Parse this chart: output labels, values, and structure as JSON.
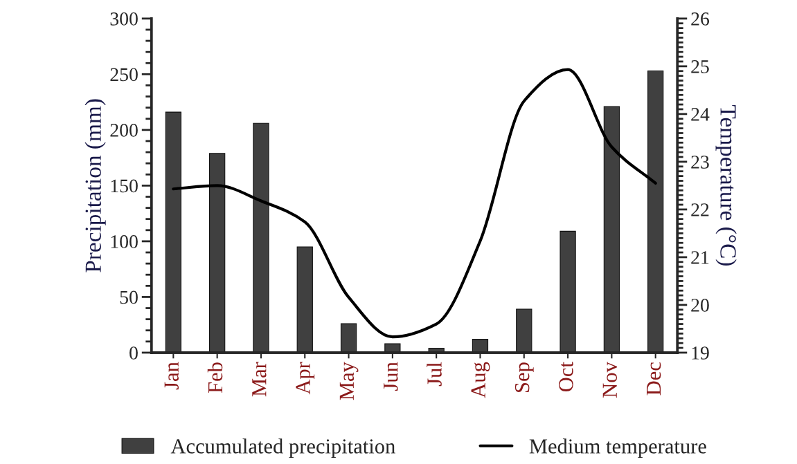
{
  "chart_data": {
    "type": "bar",
    "categories": [
      "Jan",
      "Feb",
      "Mar",
      "Apr",
      "May",
      "Jun",
      "Jul",
      "Aug",
      "Sep",
      "Oct",
      "Nov",
      "Dec"
    ],
    "ylabel": "Precipitation (mm)",
    "y2label": "Temperature (°C)",
    "ylim": [
      0,
      300
    ],
    "yticks": [
      0,
      50,
      100,
      150,
      200,
      250,
      300
    ],
    "y2lim": [
      19,
      26
    ],
    "y2ticks": [
      19,
      20,
      21,
      22,
      23,
      24,
      25,
      26
    ],
    "legend": "bottom",
    "grid": false,
    "series": [
      {
        "name": "Accumulated precipitation",
        "color": "#404040",
        "values": [
          216,
          179,
          206,
          95,
          26,
          8,
          4,
          12,
          39,
          109,
          221,
          253
        ]
      },
      {
        "name": "Medium temperature",
        "type": "line",
        "axis": "y2",
        "color": "#000000",
        "line_style": "solid",
        "marker": "none",
        "values": [
          22.43,
          22.5,
          22.18,
          21.74,
          20.16,
          19.33,
          19.6,
          21.34,
          24.27,
          24.93,
          23.31,
          22.55
        ]
      }
    ]
  }
}
